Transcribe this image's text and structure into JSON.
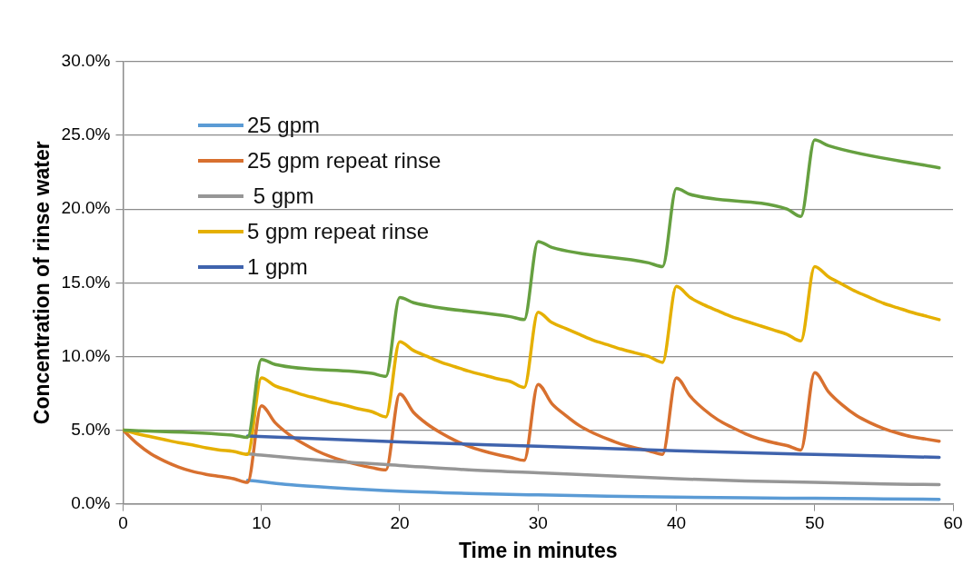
{
  "chart_data": {
    "type": "line",
    "xlabel": "Time in minutes",
    "ylabel": "Concentration of rinse water",
    "xlim": [
      0,
      60
    ],
    "xticks": [
      0,
      10,
      20,
      30,
      40,
      50,
      60
    ],
    "ylim": [
      0,
      30
    ],
    "yticks": [
      {
        "value": 0,
        "label": "0.0%"
      },
      {
        "value": 5,
        "label": "5.0%"
      },
      {
        "value": 10,
        "label": "10.0%"
      },
      {
        "value": 15,
        "label": "15.0%"
      },
      {
        "value": 20,
        "label": "20.0%"
      },
      {
        "value": 25,
        "label": "25.0%"
      },
      {
        "value": 30,
        "label": "30.0%"
      }
    ],
    "grid": "y",
    "legend": "top left",
    "marker": "none",
    "line_style": "solid",
    "series": [
      {
        "name": "25 gpm",
        "color": "#5b9bd5",
        "x": [
          9,
          10,
          12,
          15,
          20,
          25,
          30,
          35,
          40,
          45,
          50,
          55,
          59
        ],
        "values": [
          1.6,
          1.5,
          1.3,
          1.1,
          0.85,
          0.7,
          0.6,
          0.52,
          0.45,
          0.4,
          0.37,
          0.33,
          0.3
        ]
      },
      {
        "name": "25 gpm repeat rinse",
        "color": "#d8702f",
        "x": [
          0,
          1,
          2,
          3,
          4,
          5,
          6,
          7,
          8,
          9,
          10,
          11,
          12,
          13,
          14,
          15,
          16,
          17,
          18,
          19,
          20,
          21,
          22,
          23,
          24,
          25,
          26,
          27,
          28,
          29,
          30,
          31,
          32,
          33,
          34,
          35,
          36,
          37,
          38,
          39,
          40,
          41,
          42,
          43,
          44,
          45,
          46,
          47,
          48,
          49,
          50,
          51,
          52,
          53,
          54,
          55,
          56,
          57,
          58,
          59
        ],
        "values": [
          5,
          4.1,
          3.4,
          2.9,
          2.5,
          2.2,
          2.0,
          1.85,
          1.7,
          1.45,
          6.65,
          5.5,
          4.7,
          4.1,
          3.6,
          3.2,
          2.9,
          2.65,
          2.45,
          2.3,
          7.45,
          6.2,
          5.4,
          4.8,
          4.3,
          3.9,
          3.6,
          3.35,
          3.15,
          2.95,
          8.1,
          6.8,
          6.0,
          5.3,
          4.8,
          4.4,
          4.05,
          3.8,
          3.6,
          3.35,
          8.55,
          7.3,
          6.4,
          5.7,
          5.2,
          4.75,
          4.4,
          4.15,
          3.95,
          3.65,
          8.9,
          7.6,
          6.7,
          6.0,
          5.5,
          5.1,
          4.8,
          4.55,
          4.4,
          4.25
        ]
      },
      {
        "name": " 5 gpm",
        "color": "#969696",
        "x": [
          9,
          10,
          15,
          20,
          25,
          30,
          35,
          40,
          45,
          50,
          55,
          59
        ],
        "values": [
          3.4,
          3.3,
          2.9,
          2.6,
          2.3,
          2.1,
          1.9,
          1.7,
          1.55,
          1.45,
          1.35,
          1.3
        ]
      },
      {
        "name": "5 gpm repeat rinse",
        "color": "#e5b000",
        "x": [
          0,
          1,
          2,
          3,
          4,
          5,
          6,
          7,
          8,
          9,
          10,
          11,
          12,
          13,
          14,
          15,
          16,
          17,
          18,
          19,
          20,
          21,
          22,
          23,
          24,
          25,
          26,
          27,
          28,
          29,
          30,
          31,
          32,
          33,
          34,
          35,
          36,
          37,
          38,
          39,
          40,
          41,
          42,
          43,
          44,
          45,
          46,
          47,
          48,
          49,
          50,
          51,
          52,
          53,
          54,
          55,
          56,
          57,
          58,
          59
        ],
        "values": [
          5,
          4.75,
          4.55,
          4.35,
          4.15,
          4.0,
          3.8,
          3.65,
          3.55,
          3.35,
          8.55,
          8.0,
          7.7,
          7.4,
          7.15,
          6.9,
          6.7,
          6.45,
          6.25,
          5.9,
          11.0,
          10.4,
          10.0,
          9.6,
          9.3,
          9.0,
          8.75,
          8.5,
          8.3,
          7.9,
          13.0,
          12.3,
          11.9,
          11.5,
          11.1,
          10.8,
          10.5,
          10.25,
          10.0,
          9.6,
          14.75,
          14.0,
          13.5,
          13.1,
          12.7,
          12.4,
          12.1,
          11.8,
          11.5,
          11.05,
          16.1,
          15.4,
          14.9,
          14.4,
          14.0,
          13.6,
          13.3,
          13.0,
          12.75,
          12.5
        ]
      },
      {
        "name": "1 gpm",
        "color": "#3f63ad",
        "x": [
          9,
          20,
          30,
          40,
          50,
          59
        ],
        "values": [
          4.6,
          4.2,
          3.9,
          3.6,
          3.35,
          3.15
        ]
      },
      {
        "color": "#66a040",
        "x": [
          0,
          8,
          9,
          10,
          11,
          18,
          19,
          20,
          21,
          28,
          29,
          30,
          31,
          38,
          39,
          40,
          41,
          48,
          49,
          50,
          51,
          59
        ],
        "values": [
          5,
          4.65,
          4.5,
          9.8,
          9.45,
          8.85,
          8.65,
          14.0,
          13.65,
          12.7,
          12.5,
          17.8,
          17.4,
          16.35,
          16.1,
          21.4,
          21.0,
          20.0,
          19.5,
          24.7,
          24.3,
          22.8
        ]
      }
    ]
  }
}
